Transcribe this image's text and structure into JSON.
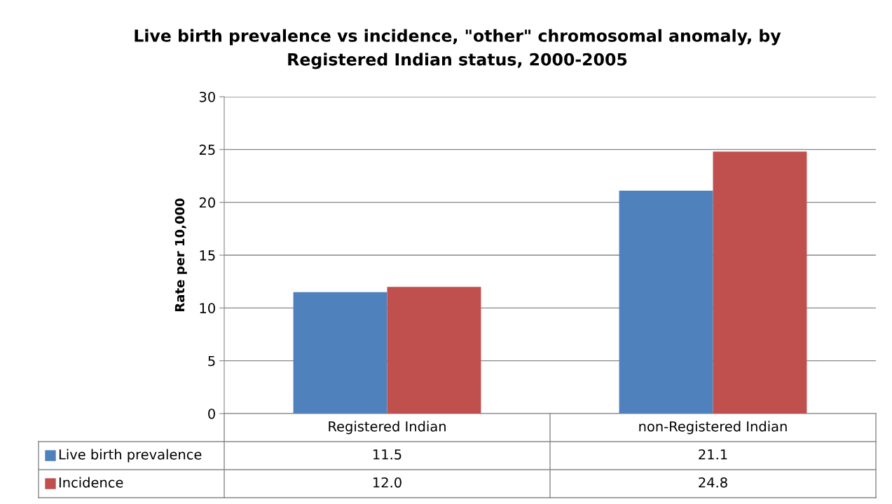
{
  "chart_data": {
    "type": "bar",
    "title": "Live birth prevalence vs incidence, \"other\" chromosomal anomaly, by\nRegistered Indian status, 2000-2005",
    "ylabel": "Rate per 10,000",
    "categories": [
      "Registered Indian",
      "non-Registered Indian"
    ],
    "series": [
      {
        "name": "Live birth prevalence",
        "color": "#4f81bd",
        "values": [
          11.5,
          21.1
        ],
        "value_labels": [
          "11.5",
          "21.1"
        ]
      },
      {
        "name": "Incidence",
        "color": "#c0504d",
        "values": [
          12.0,
          24.8
        ],
        "value_labels": [
          "12.0",
          "24.8"
        ]
      }
    ],
    "ylim": [
      0,
      30
    ],
    "yticks": [
      0,
      5,
      10,
      15,
      20,
      25,
      30
    ],
    "grid": "y",
    "legend": "bottom left"
  }
}
